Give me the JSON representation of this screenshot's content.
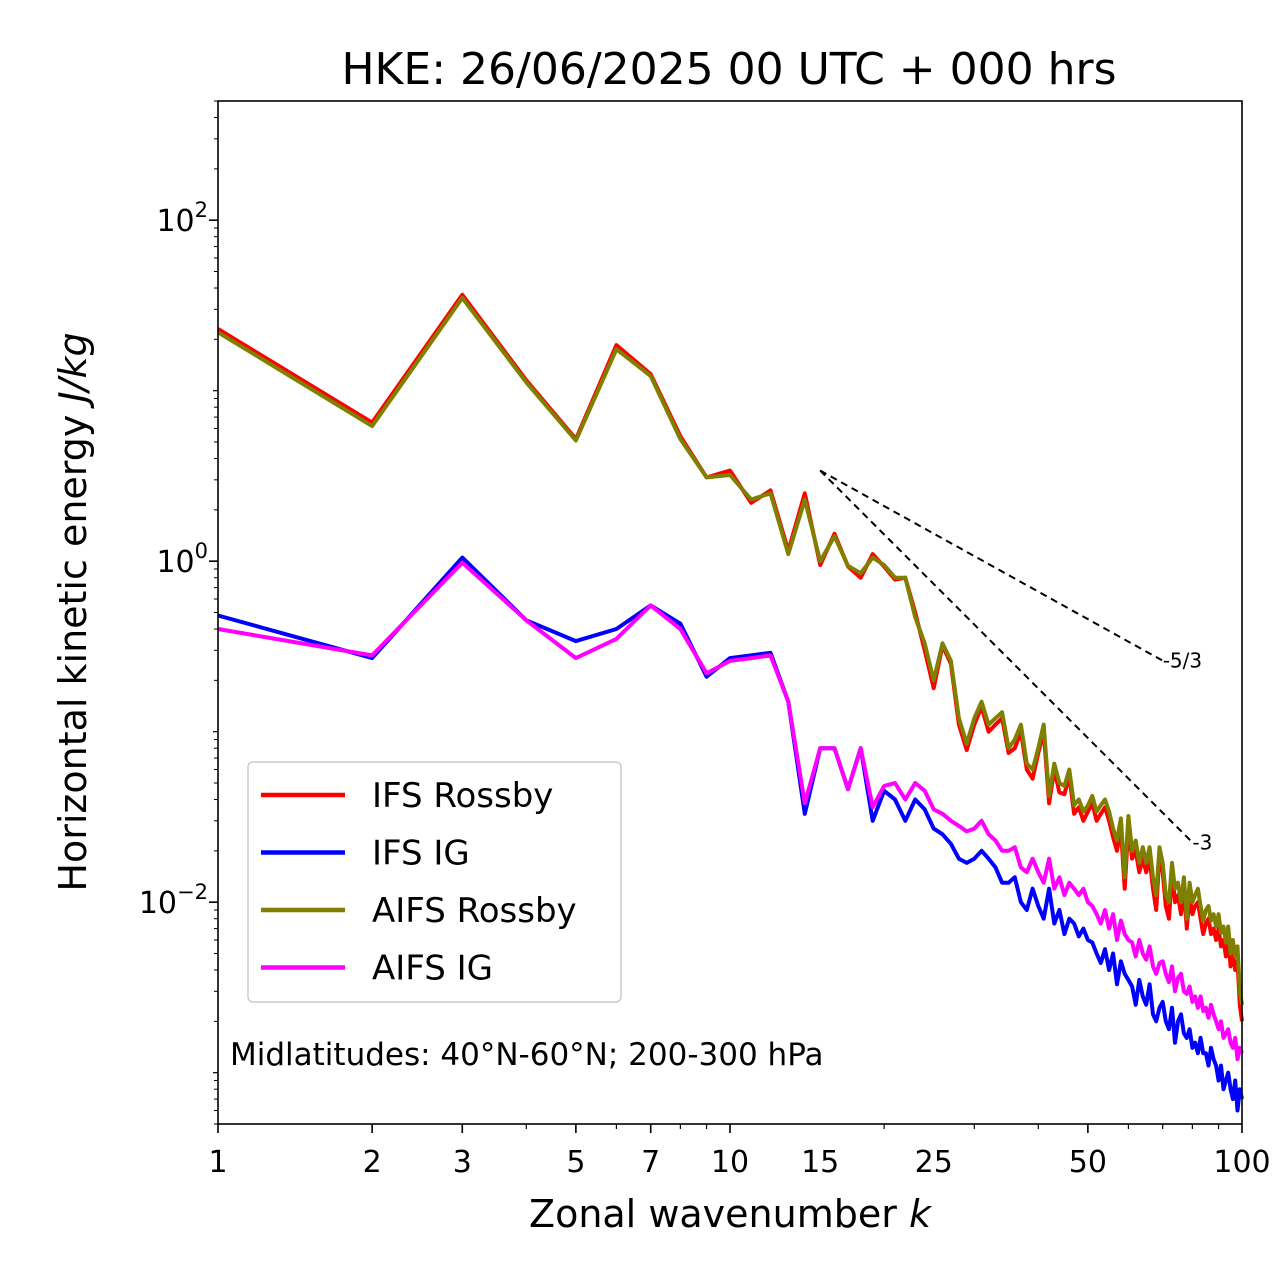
{
  "chart_data": {
    "type": "line",
    "title": "HKE: 26/06/2025 00 UTC + 000 hrs",
    "xlabel": "Zonal wavenumber",
    "xlabel_var": "k",
    "ylabel": "Horizontal kinetic energy",
    "ylabel_unit": "J/kg",
    "xscale": "log",
    "yscale": "log",
    "xlim": [
      1,
      100
    ],
    "ylim": [
      0.0005,
      500
    ],
    "x_ticks": [
      1,
      2,
      3,
      5,
      7,
      10,
      15,
      25,
      50,
      100
    ],
    "x_tick_labels": [
      "1",
      "2",
      "3",
      "5",
      "7",
      "10",
      "15",
      "25",
      "50",
      "100"
    ],
    "y_ticks": [
      100,
      1,
      0.01
    ],
    "y_tick_labels": [
      {
        "base": "10",
        "exp": "2"
      },
      {
        "base": "10",
        "exp": "0"
      },
      {
        "base": "10",
        "exp": "−2"
      }
    ],
    "grid": false,
    "legend_position": "lower-left",
    "annotation": "Midlatitudes: 40°N-60°N; 200-300 hPa",
    "reference_slopes": [
      {
        "label": "-5/3",
        "slope": -1.6667,
        "x_start": 15,
        "y_start": 3.4,
        "x_end": 70
      },
      {
        "label": "-3",
        "slope": -3,
        "x_start": 15,
        "y_start": 3.4,
        "x_end": 80
      }
    ],
    "x": [
      1,
      2,
      3,
      4,
      5,
      6,
      7,
      8,
      9,
      10,
      11,
      12,
      13,
      14,
      15,
      16,
      17,
      18,
      19,
      20,
      21,
      22,
      23,
      24,
      25,
      26,
      27,
      28,
      29,
      30,
      31,
      32,
      33,
      34,
      35,
      36,
      37,
      38,
      39,
      40,
      41,
      42,
      43,
      44,
      45,
      46,
      47,
      48,
      49,
      50,
      51,
      52,
      53,
      54,
      55,
      56,
      57,
      58,
      59,
      60,
      61,
      62,
      63,
      64,
      65,
      66,
      67,
      68,
      69,
      70,
      71,
      72,
      73,
      74,
      75,
      76,
      77,
      78,
      79,
      80,
      81,
      82,
      83,
      84,
      85,
      86,
      87,
      88,
      89,
      90,
      91,
      92,
      93,
      94,
      95,
      96,
      97,
      98,
      99,
      100
    ],
    "series": [
      {
        "name": "IFS Rossby",
        "color": "#ff0000",
        "values": [
          23,
          6.5,
          36.5,
          11.5,
          5.2,
          18.5,
          12.5,
          5.4,
          3.1,
          3.4,
          2.2,
          2.6,
          1.15,
          2.5,
          0.95,
          1.45,
          0.93,
          0.8,
          1.1,
          0.93,
          0.78,
          0.8,
          0.5,
          0.3,
          0.18,
          0.32,
          0.25,
          0.11,
          0.078,
          0.11,
          0.14,
          0.1,
          0.11,
          0.12,
          0.075,
          0.08,
          0.1,
          0.06,
          0.053,
          0.075,
          0.1,
          0.038,
          0.06,
          0.044,
          0.043,
          0.055,
          0.033,
          0.036,
          0.03,
          0.034,
          0.038,
          0.03,
          0.033,
          0.036,
          0.03,
          0.024,
          0.02,
          0.027,
          0.012,
          0.028,
          0.018,
          0.02,
          0.015,
          0.018,
          0.015,
          0.018,
          0.012,
          0.009,
          0.019,
          0.015,
          0.0095,
          0.008,
          0.015,
          0.01,
          0.011,
          0.0085,
          0.012,
          0.007,
          0.011,
          0.0085,
          0.0095,
          0.01,
          0.008,
          0.0065,
          0.0075,
          0.008,
          0.0065,
          0.007,
          0.006,
          0.007,
          0.0055,
          0.006,
          0.0048,
          0.006,
          0.0042,
          0.005,
          0.004,
          0.0045,
          0.0025,
          0.002
        ]
      },
      {
        "name": "IFS IG",
        "color": "#0000ff",
        "values": [
          0.48,
          0.27,
          1.05,
          0.45,
          0.34,
          0.4,
          0.55,
          0.43,
          0.21,
          0.27,
          0.28,
          0.29,
          0.15,
          0.033,
          0.08,
          0.08,
          0.046,
          0.08,
          0.03,
          0.045,
          0.04,
          0.03,
          0.04,
          0.035,
          0.027,
          0.025,
          0.022,
          0.018,
          0.017,
          0.018,
          0.02,
          0.018,
          0.016,
          0.013,
          0.013,
          0.014,
          0.01,
          0.009,
          0.012,
          0.0095,
          0.008,
          0.012,
          0.0075,
          0.009,
          0.0065,
          0.008,
          0.0075,
          0.0063,
          0.007,
          0.006,
          0.0058,
          0.005,
          0.0044,
          0.0053,
          0.004,
          0.005,
          0.0033,
          0.0045,
          0.0038,
          0.0035,
          0.0032,
          0.0025,
          0.0035,
          0.0028,
          0.0025,
          0.0033,
          0.0022,
          0.002,
          0.0024,
          0.0026,
          0.002,
          0.0018,
          0.0024,
          0.0015,
          0.002,
          0.0022,
          0.0017,
          0.0016,
          0.0018,
          0.0014,
          0.0015,
          0.0013,
          0.0016,
          0.0013,
          0.0013,
          0.0011,
          0.0014,
          0.0012,
          0.0011,
          0.0009,
          0.0011,
          0.0008,
          0.0009,
          0.001,
          0.0008,
          0.0007,
          0.0009,
          0.0006,
          0.0008,
          0.0007
        ]
      },
      {
        "name": "AIFS Rossby",
        "color": "#808000",
        "values": [
          22,
          6.2,
          35,
          11.2,
          5.1,
          17.5,
          12.2,
          5.2,
          3.1,
          3.2,
          2.3,
          2.5,
          1.1,
          2.3,
          1.0,
          1.4,
          0.94,
          0.85,
          1.05,
          0.95,
          0.8,
          0.8,
          0.47,
          0.33,
          0.2,
          0.33,
          0.26,
          0.12,
          0.085,
          0.12,
          0.15,
          0.11,
          0.12,
          0.13,
          0.08,
          0.09,
          0.11,
          0.065,
          0.06,
          0.08,
          0.11,
          0.042,
          0.065,
          0.05,
          0.048,
          0.06,
          0.037,
          0.04,
          0.034,
          0.037,
          0.042,
          0.034,
          0.037,
          0.04,
          0.034,
          0.027,
          0.023,
          0.031,
          0.014,
          0.032,
          0.02,
          0.023,
          0.017,
          0.021,
          0.017,
          0.021,
          0.014,
          0.011,
          0.021,
          0.017,
          0.011,
          0.01,
          0.017,
          0.012,
          0.013,
          0.01,
          0.014,
          0.008,
          0.013,
          0.01,
          0.011,
          0.012,
          0.0095,
          0.0078,
          0.009,
          0.0095,
          0.0078,
          0.0085,
          0.0072,
          0.0085,
          0.0066,
          0.0072,
          0.0058,
          0.0072,
          0.005,
          0.006,
          0.0048,
          0.0055,
          0.003,
          0.0025
        ]
      },
      {
        "name": "AIFS IG",
        "color": "#ff00ff",
        "values": [
          0.4,
          0.28,
          0.98,
          0.45,
          0.27,
          0.35,
          0.55,
          0.4,
          0.22,
          0.26,
          0.27,
          0.28,
          0.15,
          0.038,
          0.08,
          0.08,
          0.046,
          0.08,
          0.036,
          0.048,
          0.05,
          0.04,
          0.05,
          0.045,
          0.035,
          0.033,
          0.03,
          0.028,
          0.026,
          0.027,
          0.03,
          0.025,
          0.023,
          0.02,
          0.02,
          0.021,
          0.016,
          0.015,
          0.018,
          0.015,
          0.013,
          0.018,
          0.012,
          0.014,
          0.011,
          0.013,
          0.012,
          0.011,
          0.012,
          0.01,
          0.0095,
          0.0085,
          0.0075,
          0.009,
          0.007,
          0.0085,
          0.006,
          0.0078,
          0.0065,
          0.006,
          0.0058,
          0.0048,
          0.006,
          0.005,
          0.0046,
          0.0055,
          0.0042,
          0.0038,
          0.0044,
          0.0045,
          0.0038,
          0.0034,
          0.0042,
          0.003,
          0.0036,
          0.0038,
          0.003,
          0.0029,
          0.0032,
          0.0026,
          0.0028,
          0.0024,
          0.0028,
          0.0023,
          0.0024,
          0.0021,
          0.0025,
          0.0022,
          0.002,
          0.0018,
          0.002,
          0.0016,
          0.0017,
          0.0018,
          0.0015,
          0.0014,
          0.0016,
          0.0012,
          0.0014,
          0.0013
        ]
      }
    ]
  }
}
